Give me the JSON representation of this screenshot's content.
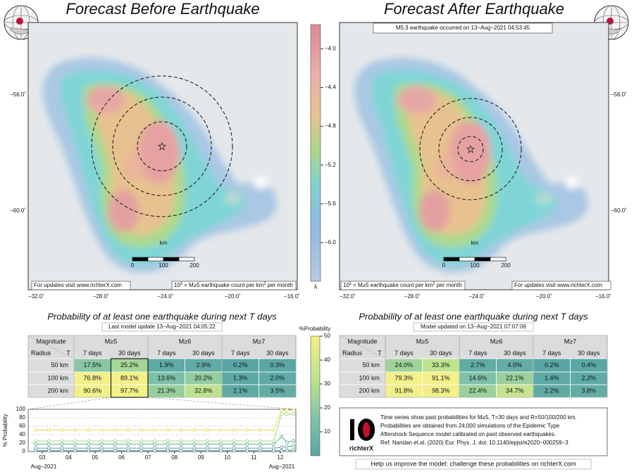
{
  "left_panel": {
    "title": "Forecast Before Earthquake",
    "update_note": "For updates visit www.richterX.com",
    "rate_note": [
      "10",
      "λ",
      " = M≥5 earthquake count per km",
      "2",
      " per month"
    ],
    "lat_labels": [
      "−56.0˚",
      "−60.0˚"
    ],
    "lon_labels": [
      "−32.0˚",
      "−28.0˚",
      "−24.0˚",
      "−20.0˚",
      "−16.0˚"
    ],
    "scale_unit": "km",
    "scale_labels": [
      "0",
      "100",
      "200"
    ]
  },
  "right_panel": {
    "title": "Forecast After Earthquake",
    "event": "M5.3 earthquake occurred on 13−Aug−2021 04:53:45",
    "update_note": "For updates visit www.richterX.com",
    "rate_note": [
      "10",
      "λ",
      " = M≥5 earthquake count per km",
      "2",
      " per month"
    ],
    "lat_labels": [
      "−56.0˚",
      "−60.0˚"
    ],
    "lon_labels": [
      "−32.0˚",
      "−28.0˚",
      "−24.0˚",
      "−20.0˚",
      "−16.0˚"
    ],
    "scale_unit": "km",
    "scale_labels": [
      "0",
      "100",
      "200"
    ]
  },
  "rate_colorbar": {
    "label": "λ",
    "lim": [
      -6.4,
      -3.75
    ],
    "ticks": [
      {
        "value": -4.0,
        "label": "−4.0"
      },
      {
        "value": -4.4,
        "label": "−4.4"
      },
      {
        "value": -4.8,
        "label": "−4.8"
      },
      {
        "value": -5.2,
        "label": "−5.2"
      },
      {
        "value": -5.6,
        "label": "−5.6"
      },
      {
        "value": -6.0,
        "label": "−6.0"
      }
    ]
  },
  "prob_colorbar": {
    "title": "%Probability",
    "lim": [
      0,
      50
    ],
    "ticks": [
      10,
      20,
      30,
      40,
      50
    ]
  },
  "left_table": {
    "heading": "Probability of at least one earthquake during next T days",
    "update": "Last model update 13−Aug−2021 04:05:22",
    "corner": [
      "Magnitude",
      "Radius",
      "T"
    ],
    "magnitudes": [
      "M≥5",
      "M≥6",
      "M≥7"
    ],
    "periods": [
      "7 days",
      "30 days",
      "7 days",
      "30 days",
      "7 days",
      "30 days"
    ],
    "rows": [
      {
        "radius": "50 km",
        "cells": [
          "17.5%",
          "25.2%",
          "1.9%",
          "2.9%",
          "0.2%",
          "0.3%"
        ]
      },
      {
        "radius": "100 km",
        "cells": [
          "76.8%",
          "89.1%",
          "13.6%",
          "20.2%",
          "1.3%",
          "2.0%"
        ]
      },
      {
        "radius": "200 km",
        "cells": [
          "90.6%",
          "97.7%",
          "21.3%",
          "32.8%",
          "2.1%",
          "3.5%"
        ]
      }
    ]
  },
  "right_table": {
    "heading": "Probability of at least one earthquake during next T days",
    "update": "Model updated on 13−Aug−2021 07:07:06",
    "corner": [
      "Magnitude",
      "Radius",
      "T"
    ],
    "magnitudes": [
      "M≥5",
      "M≥6",
      "M≥7"
    ],
    "periods": [
      "7 days",
      "30 days",
      "7 days",
      "30 days",
      "7 days",
      "30 days"
    ],
    "rows": [
      {
        "radius": "50 km",
        "cells": [
          "24.0%",
          "33.3%",
          "2.7%",
          "4.0%",
          "0.2%",
          "0.4%"
        ]
      },
      {
        "radius": "100 km",
        "cells": [
          "79.3%",
          "91.1%",
          "14.6%",
          "22.1%",
          "1.4%",
          "2.2%"
        ]
      },
      {
        "radius": "200 km",
        "cells": [
          "91.8%",
          "98.3%",
          "22.4%",
          "34.7%",
          "2.2%",
          "3.8%"
        ]
      }
    ]
  },
  "chart_data": {
    "type": "line",
    "y_label": "% Probability",
    "x_label_start": "Aug−2021",
    "x_label_end": "Aug−2021",
    "x": [
      2.75,
      3.25,
      3.75,
      4.25,
      4.75,
      5.25,
      5.75,
      6.25,
      6.75,
      7.25,
      7.75,
      8.25,
      8.75,
      9.25,
      9.75,
      10.25,
      10.75,
      11.25,
      11.75,
      12.05,
      12.25,
      12.5
    ],
    "xlim": [
      2.47,
      12.59
    ],
    "xticks": [
      {
        "value": 3,
        "label": "03"
      },
      {
        "value": 4,
        "label": "04"
      },
      {
        "value": 5,
        "label": "05"
      },
      {
        "value": 6,
        "label": "06"
      },
      {
        "value": 7,
        "label": "07"
      },
      {
        "value": 8,
        "label": "08"
      },
      {
        "value": 9,
        "label": "09"
      },
      {
        "value": 10,
        "label": "10"
      },
      {
        "value": 11,
        "label": "11"
      },
      {
        "value": 12,
        "label": "12"
      }
    ],
    "ylim": [
      0,
      100
    ],
    "yticks": [
      0,
      20,
      40,
      60,
      80,
      100
    ],
    "grid": true,
    "series": [
      {
        "color": "#e3dc5a",
        "values": [
          51,
          51,
          51,
          51,
          51,
          51,
          51,
          51,
          51,
          51,
          51,
          51,
          51,
          51,
          51,
          51,
          51,
          51,
          51,
          98,
          98,
          98
        ]
      },
      {
        "color": "#a6d87e",
        "values": [
          25,
          25,
          25,
          25,
          25,
          25,
          25,
          25,
          25,
          25,
          25,
          25,
          25,
          25,
          25,
          25,
          25,
          25,
          25,
          89,
          89,
          89
        ]
      },
      {
        "color": "#5fb3a6",
        "values": [
          17,
          17,
          17,
          17,
          17,
          17,
          17,
          17,
          17,
          17,
          17,
          17,
          17,
          17,
          17,
          17,
          17,
          17,
          17,
          35,
          22,
          25
        ]
      },
      {
        "color": "#6aa3a3",
        "values": [
          8,
          8,
          8,
          8,
          8,
          8,
          8,
          8,
          8,
          8,
          8,
          8,
          8,
          8,
          8,
          8,
          8,
          8,
          8,
          10,
          12,
          13
        ]
      },
      {
        "color": "#4f9393",
        "values": [
          1.9,
          1.9,
          1.9,
          1.9,
          1.9,
          1.9,
          1.9,
          1.9,
          1.9,
          1.9,
          1.9,
          1.9,
          1.9,
          1.9,
          1.9,
          1.9,
          1.9,
          1.9,
          1.9,
          2,
          3,
          3
        ]
      }
    ]
  },
  "info": {
    "logo": "richterX",
    "lines": [
      "Time series show past probabilities for M≥5, T=30 days and R=50/100/200 km.",
      "Probabilities are obtained from 24,000 simulations of the Epidemic Type",
      "Aftershock Sequence model calibrated on past observed earthquakes.",
      "Ref: Nandan et.al. (2020) Eur. Phys. J, doi: 10.1140/epjst/e2020−000259−3"
    ]
  },
  "footer": "Help us improve the model: challenge these probabilities on richterX.com"
}
